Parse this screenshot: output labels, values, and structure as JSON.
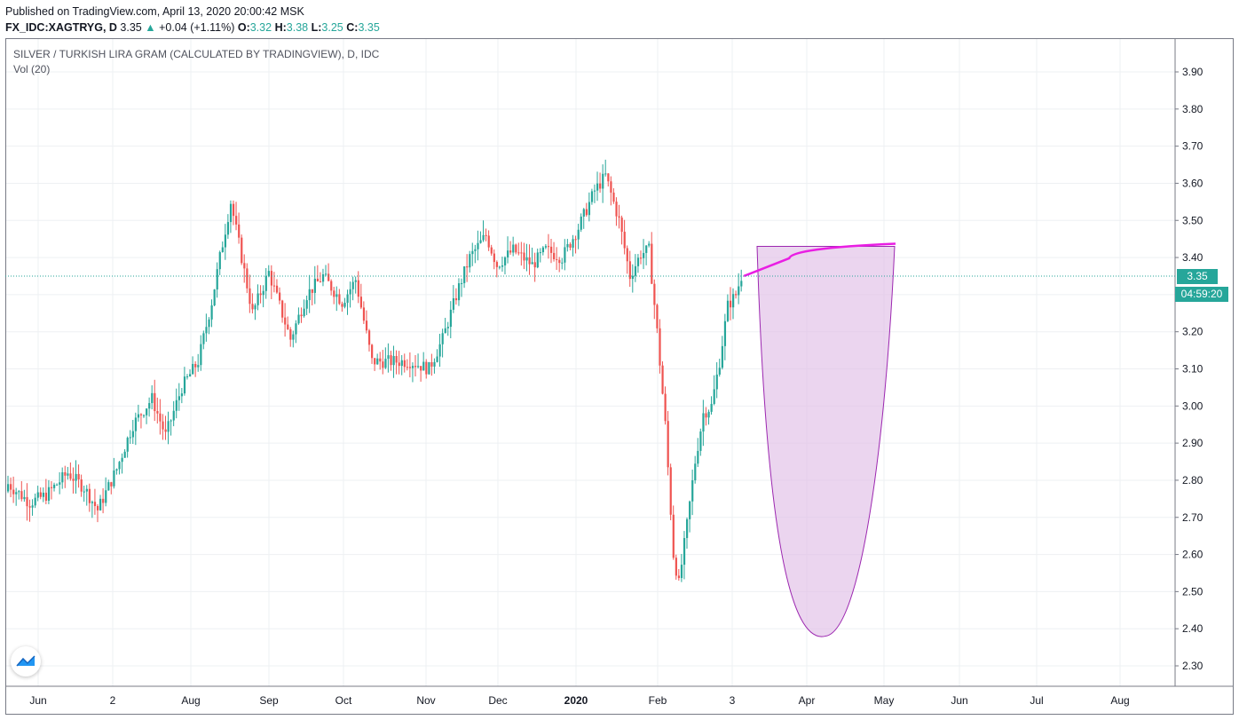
{
  "header": {
    "published": "Published on TradingView.com, April 13, 2020 20:00:42 MSK",
    "symbol": "FX_IDC:XAGTRYG, D",
    "last": "3.35",
    "arrow": "▲",
    "change": "+0.04 (+1.11%)",
    "o_label": "O:",
    "o_value": "3.32",
    "h_label": "H:",
    "h_value": "3.38",
    "l_label": "L:",
    "l_value": "3.25",
    "c_label": "C:",
    "c_value": "3.35"
  },
  "legend": {
    "title": "SILVER / TURKISH LIRA GRAM (CALCULATED BY TRADINGVIEW), D, IDC",
    "volume": "Vol (20)"
  },
  "price_tag": "3.35",
  "timer_tag": "04:59:20",
  "colors": {
    "up": "#26a69a",
    "down": "#ef5350",
    "shape_fill": "#e1bee7",
    "shape_stroke": "#9c27b0",
    "projection": "#e91ee3",
    "grid": "#eef0f3",
    "last_line": "#26a69a"
  },
  "chart_data": {
    "type": "candlestick",
    "title": "SILVER / TURKISH LIRA GRAM (CALCULATED BY TRADINGVIEW), D, IDC",
    "ylim": [
      2.25,
      3.92
    ],
    "y_ticks": [
      "3.90",
      "3.80",
      "3.70",
      "3.60",
      "3.50",
      "3.40",
      "3.30",
      "3.20",
      "3.10",
      "3.00",
      "2.90",
      "2.80",
      "2.70",
      "2.60",
      "2.50",
      "2.40",
      "2.30"
    ],
    "x_ticks": [
      "Jun",
      "2",
      "Aug",
      "Sep",
      "Oct",
      "Nov",
      "Dec",
      "2020",
      "Feb",
      "3",
      "Apr",
      "May",
      "Jun",
      "Jul",
      "Aug"
    ],
    "last_price": 3.35,
    "grid": true,
    "anchor_closes": [
      [
        0,
        2.79
      ],
      [
        8,
        2.74
      ],
      [
        14,
        2.76
      ],
      [
        22,
        2.82
      ],
      [
        28,
        2.78
      ],
      [
        33,
        2.72
      ],
      [
        40,
        2.83
      ],
      [
        46,
        2.95
      ],
      [
        53,
        3.02
      ],
      [
        58,
        2.92
      ],
      [
        64,
        3.05
      ],
      [
        70,
        3.12
      ],
      [
        75,
        3.28
      ],
      [
        78,
        3.4
      ],
      [
        82,
        3.55
      ],
      [
        86,
        3.4
      ],
      [
        90,
        3.25
      ],
      [
        96,
        3.36
      ],
      [
        104,
        3.18
      ],
      [
        110,
        3.3
      ],
      [
        116,
        3.35
      ],
      [
        123,
        3.28
      ],
      [
        128,
        3.34
      ],
      [
        134,
        3.12
      ],
      [
        140,
        3.12
      ],
      [
        148,
        3.12
      ],
      [
        155,
        3.1
      ],
      [
        160,
        3.18
      ],
      [
        166,
        3.32
      ],
      [
        170,
        3.4
      ],
      [
        176,
        3.46
      ],
      [
        180,
        3.38
      ],
      [
        186,
        3.42
      ],
      [
        193,
        3.38
      ],
      [
        198,
        3.42
      ],
      [
        204,
        3.4
      ],
      [
        210,
        3.48
      ],
      [
        216,
        3.58
      ],
      [
        220,
        3.62
      ],
      [
        225,
        3.5
      ],
      [
        229,
        3.35
      ],
      [
        233,
        3.41
      ],
      [
        236,
        3.42
      ],
      [
        239,
        3.2
      ],
      [
        242,
        2.95
      ],
      [
        245,
        2.6
      ],
      [
        247,
        2.52
      ],
      [
        250,
        2.68
      ],
      [
        253,
        2.85
      ],
      [
        256,
        2.98
      ],
      [
        259,
        3.0
      ],
      [
        262,
        3.12
      ],
      [
        265,
        3.27
      ],
      [
        268,
        3.3
      ],
      [
        270,
        3.35
      ]
    ],
    "annotations": {
      "ellipse_shape": {
        "top": 3.43,
        "bottom": 2.38
      },
      "projection_line": {
        "from": 3.35,
        "to": 3.43
      }
    }
  }
}
